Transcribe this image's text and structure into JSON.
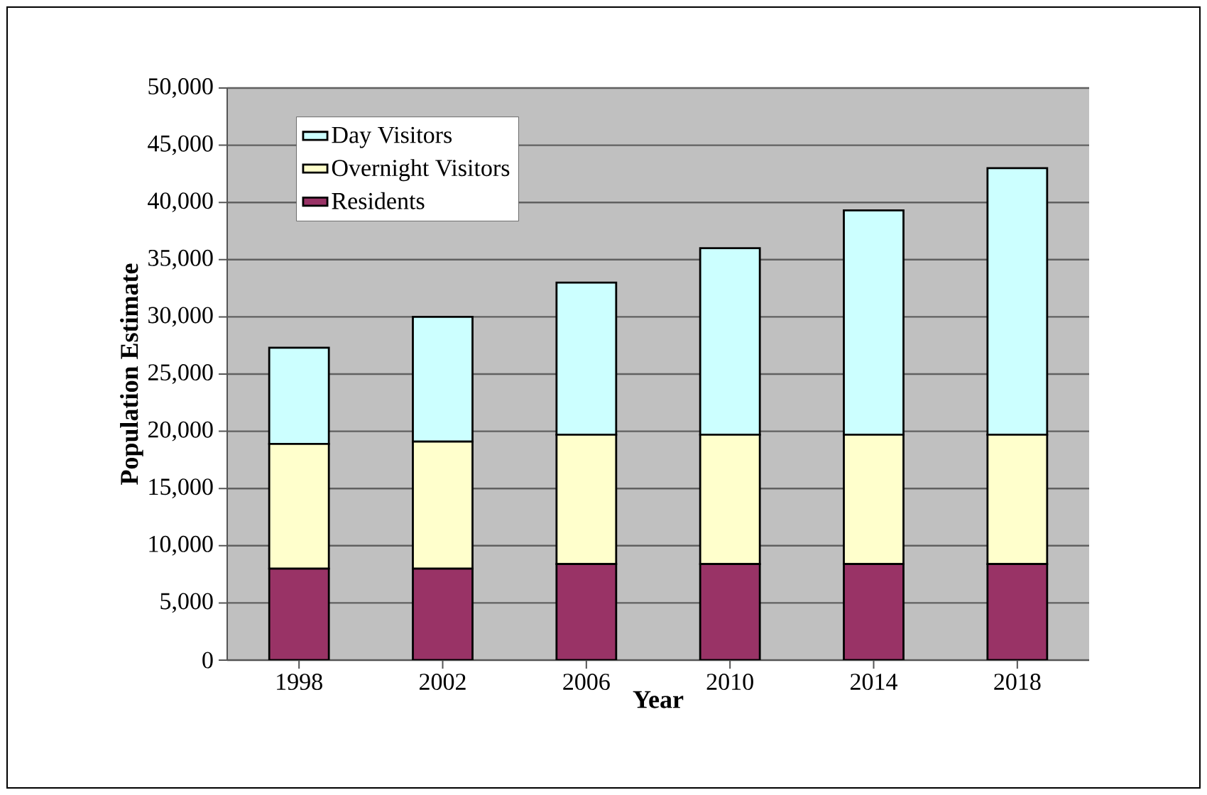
{
  "chart_data": {
    "type": "bar",
    "stacked": true,
    "xlabel": "Year",
    "ylabel": "Population Estimate",
    "categories": [
      "1998",
      "2002",
      "2006",
      "2010",
      "2014",
      "2018"
    ],
    "series": [
      {
        "name": "Residents",
        "color": "#993366",
        "values": [
          8000,
          8000,
          8400,
          8400,
          8400,
          8400
        ]
      },
      {
        "name": "Overnight Visitors",
        "color": "#ffffcc",
        "values": [
          10900,
          11100,
          11300,
          11300,
          11300,
          11300
        ]
      },
      {
        "name": "Day Visitors",
        "color": "#ccffff",
        "values": [
          8400,
          10900,
          13300,
          16300,
          19600,
          23300
        ]
      }
    ],
    "ylim": [
      0,
      50000
    ],
    "yticks": [
      0,
      {
        "value": 5000,
        "label": "5,000"
      },
      {
        "value": 10000,
        "label": "10,000"
      },
      {
        "value": 15000,
        "label": "15,000"
      },
      {
        "value": 20000,
        "label": "20,000"
      },
      {
        "value": 25000,
        "label": "25,000"
      },
      {
        "value": 30000,
        "label": "30,000"
      },
      {
        "value": 35000,
        "label": "35,000"
      },
      {
        "value": 40000,
        "label": "40,000"
      },
      {
        "value": 45000,
        "label": "45,000"
      },
      {
        "value": 50000,
        "label": "50,000"
      }
    ],
    "grid": "y",
    "legend": "top left"
  }
}
